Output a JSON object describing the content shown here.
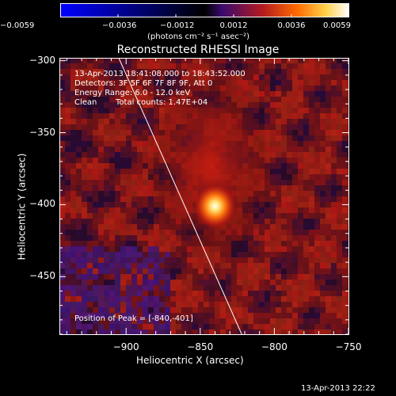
{
  "figure": {
    "title": "Reconstructed RHESSI Image",
    "footer_timestamp": "13-Apr-2013 22:22"
  },
  "colorbar": {
    "ticks": [
      "-0.0059",
      "-0.0036",
      "-0.0012",
      "0.0012",
      "0.0036",
      "0.0059"
    ],
    "unit_label": "(photons cm⁻² s⁻¹ asec⁻²)",
    "colors": [
      "#0000ff",
      "#000000",
      "#3a0a6e",
      "#b31a20",
      "#ff6a00",
      "#ffd24a",
      "#ffffff"
    ]
  },
  "annotations": {
    "time_range": "13-Apr-2013 18:41:08.000 to 18:43:52.000",
    "detectors": "Detectors: 3F 5F 6F 7F 8F 9F, Att 0",
    "energy": "Energy Range: 6.0 - 12.0 keV",
    "method": "Clean",
    "counts": "Total counts: 1.47E+04",
    "peak": "Position of Peak = [-840,-401]"
  },
  "chart_data": {
    "type": "heatmap",
    "title": "Reconstructed RHESSI Image",
    "xlabel": "Heliocentric X (arcsec)",
    "ylabel": "Heliocentric Y (arcsec)",
    "xlim": [
      -945,
      -750
    ],
    "ylim": [
      -490,
      -298
    ],
    "xticks": [
      -900,
      -850,
      -800,
      -750
    ],
    "yticks": [
      -300,
      -350,
      -400,
      -450
    ],
    "xtick_labels": [
      "−900",
      "−850",
      "−800",
      "−750"
    ],
    "ytick_labels": [
      "−300",
      "−350",
      "−400",
      "−450"
    ],
    "peak": {
      "x": -840,
      "y": -401
    },
    "limb": [
      {
        "x": -905,
        "y": -298
      },
      {
        "x": -822,
        "y": -490
      }
    ]
  }
}
